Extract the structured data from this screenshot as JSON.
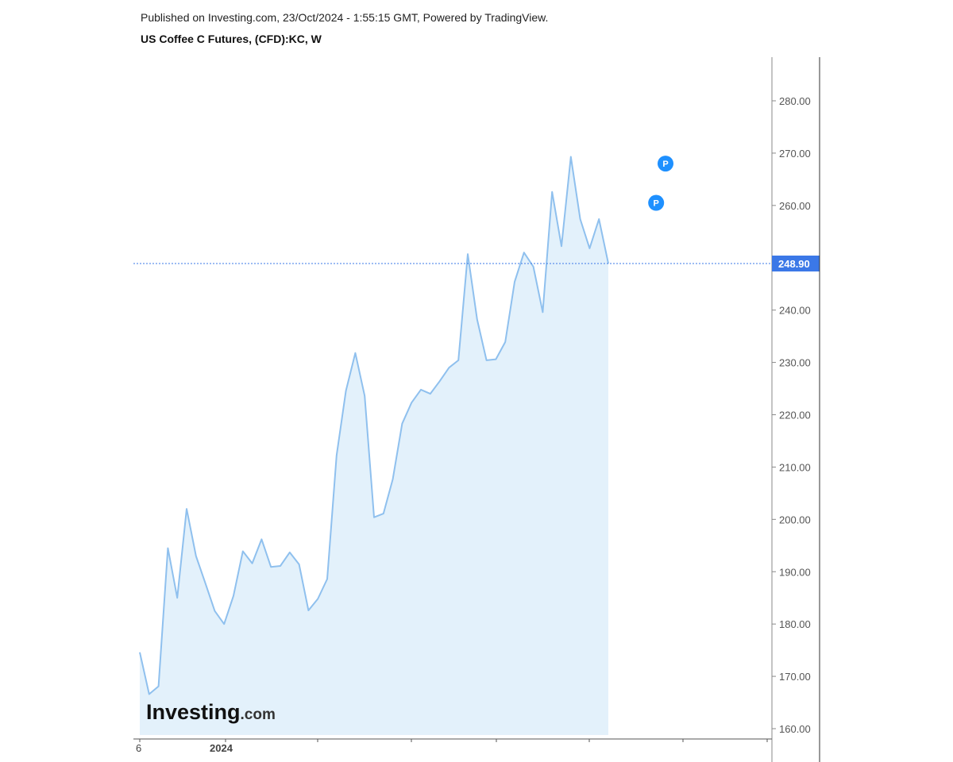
{
  "header": {
    "published": "Published on Investing.com, 23/Oct/2024 - 1:55:15 GMT, Powered by TradingView.",
    "title": "US Coffee C Futures, (CFD):KC, W"
  },
  "logo": {
    "main": "Investing",
    "sub": ".com"
  },
  "colors": {
    "line": "#8fc0ee",
    "fill": "#e3f1fb",
    "price_line": "#3b78e7",
    "price_label_bg": "#3b78e7",
    "badge": "#1e90ff",
    "axis": "#333333"
  },
  "chart_data": {
    "type": "area",
    "title": "US Coffee C Futures, (CFD):KC, W",
    "xlabel": "",
    "ylabel": "",
    "ylim": [
      157,
      290
    ],
    "yticks": [
      160,
      170,
      180,
      190,
      200,
      210,
      220,
      230,
      240,
      250,
      260,
      270,
      280
    ],
    "ytick_labels": [
      "160.00",
      "170.00",
      "180.00",
      "190.00",
      "200.00",
      "210.00",
      "220.00",
      "230.00",
      "240.00",
      "",
      "260.00",
      "270.00",
      "280.00"
    ],
    "xtick_labels": [
      "6",
      "2024"
    ],
    "last_price": 248.9,
    "last_price_label": "248.90",
    "grid": false,
    "badge_icon": "p-marker-icon",
    "badge_label": "P",
    "badges": [
      {
        "index": 55,
        "price": 268
      },
      {
        "index": 54,
        "price": 260.5
      }
    ],
    "series": [
      {
        "values": [
          174.6,
          166.6,
          168.1,
          194.5,
          185,
          202,
          193,
          187.8,
          182.5,
          180,
          185.4,
          193.9,
          191.6,
          196.2,
          190.9,
          191.1,
          193.7,
          191.4,
          182.6,
          184.8,
          188.6,
          212.2,
          224.6,
          231.8,
          223.6,
          200.4,
          201.1,
          207.7,
          218.3,
          222.3,
          224.8,
          224,
          226.4,
          229,
          230.4,
          250.7,
          238.2,
          230.4,
          230.6,
          233.9,
          245.4,
          251,
          248.3,
          239.6,
          262.6,
          252.2,
          269.3,
          257.4,
          251.8,
          257.4,
          248.9
        ]
      }
    ]
  }
}
